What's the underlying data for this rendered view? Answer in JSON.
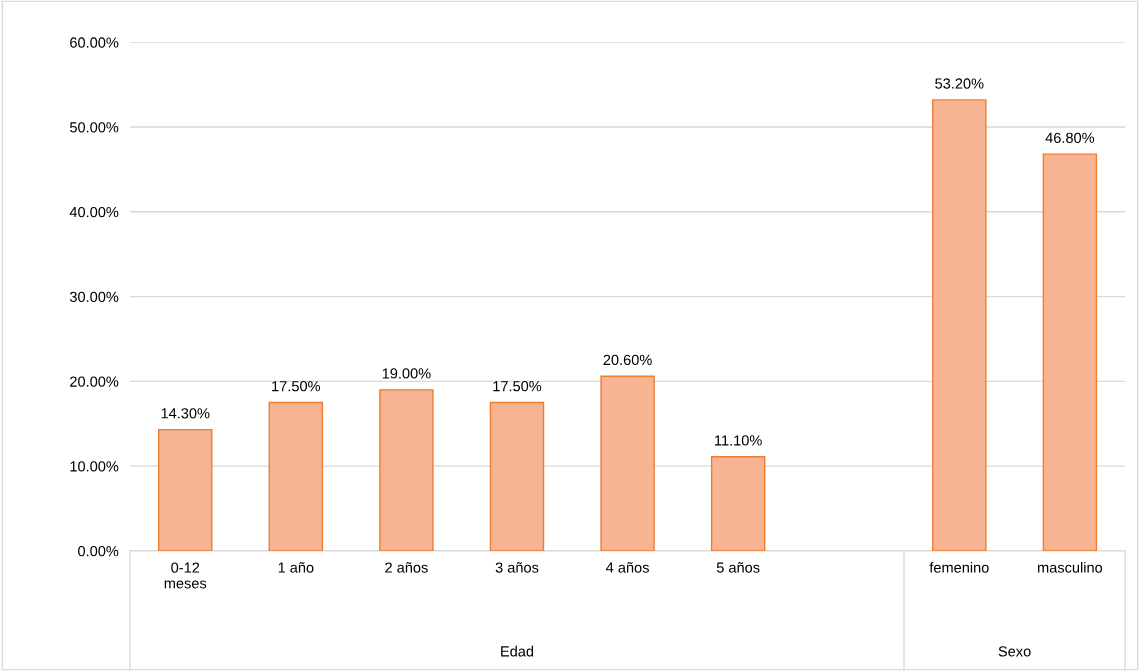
{
  "chart_data": {
    "type": "bar",
    "categories": [
      "0-12\nmeses",
      "1 año",
      "2 años",
      "3 años",
      "4 años",
      "5 años",
      null,
      "femenino",
      "masculino"
    ],
    "values": [
      14.3,
      17.5,
      19.0,
      17.5,
      20.6,
      11.1,
      null,
      53.2,
      46.8
    ],
    "value_labels": [
      "14.30%",
      "17.50%",
      "19.00%",
      "17.50%",
      "20.60%",
      "11.10%",
      null,
      "53.20%",
      "46.80%"
    ],
    "color": "#f6b493",
    "ylim": [
      0,
      60
    ],
    "yticks": [
      {
        "value": 0,
        "label": "0.00%"
      },
      {
        "value": 10,
        "label": "10.00%"
      },
      {
        "value": 20,
        "label": "20.00%"
      },
      {
        "value": 30,
        "label": "30.00%"
      },
      {
        "value": 40,
        "label": "40.00%"
      },
      {
        "value": 50,
        "label": "50.00%"
      },
      {
        "value": 60,
        "label": "60.00%"
      }
    ],
    "grid": "y",
    "annotations": [
      "Edad",
      "Sexo"
    ]
  }
}
